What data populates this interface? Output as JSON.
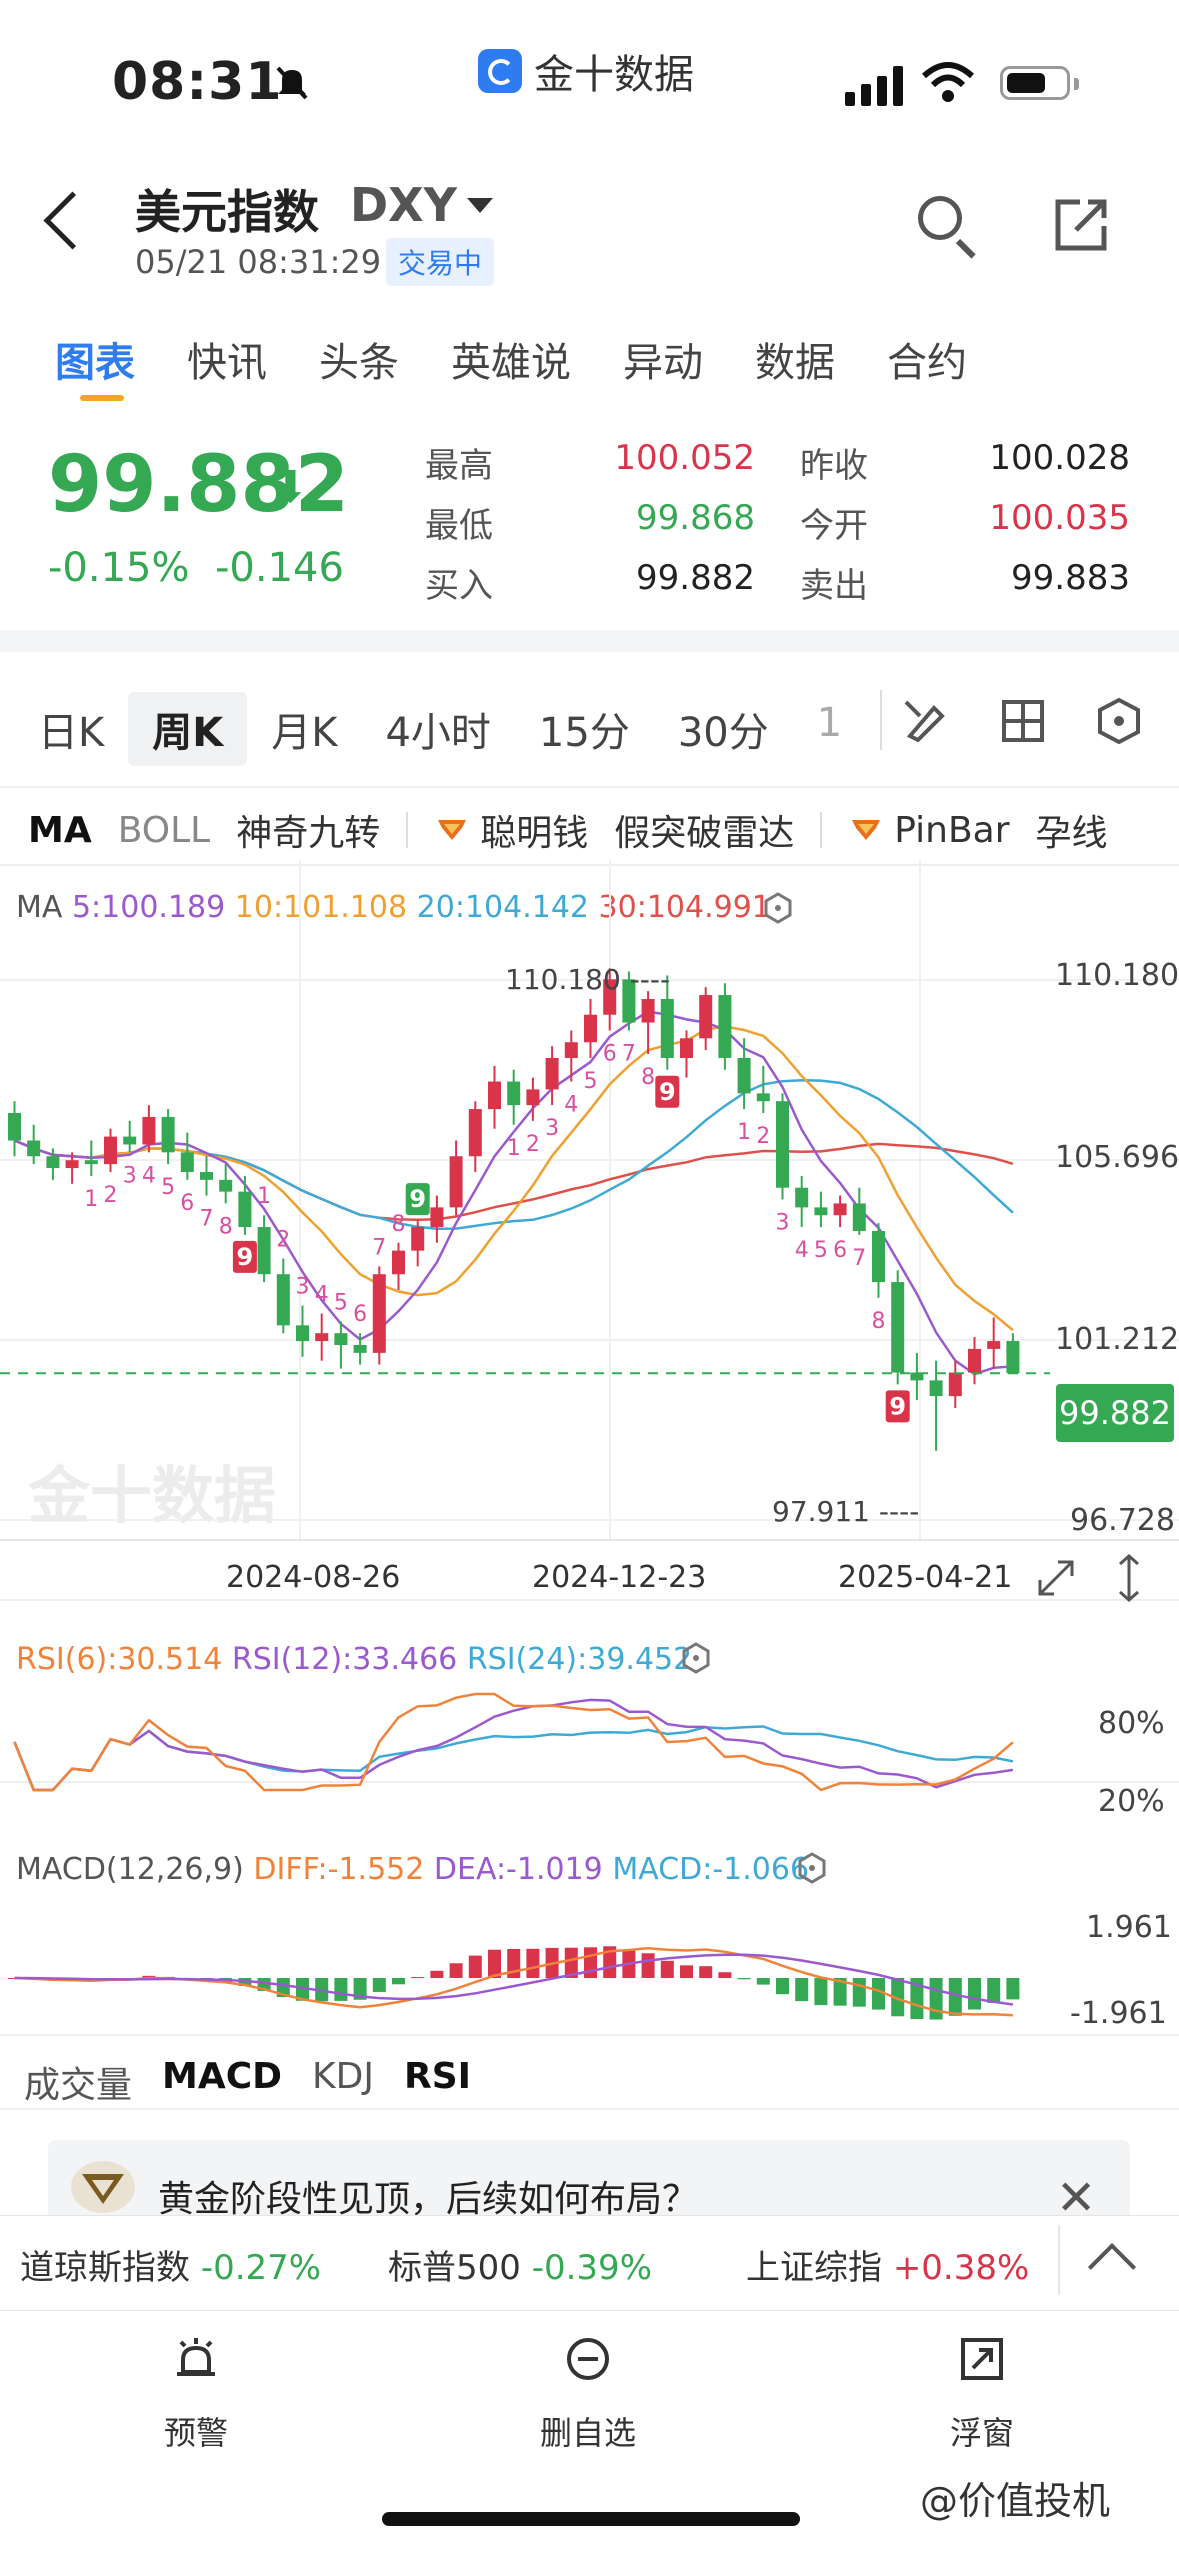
{
  "status_bar": {
    "time": "08:31",
    "app_name": "金十数据"
  },
  "header": {
    "title": "美元指数",
    "code": "DXY",
    "datetime": "05/21 08:31:29",
    "status_badge": "交易中"
  },
  "tabs": [
    "图表",
    "快讯",
    "头条",
    "英雄说",
    "异动",
    "数据",
    "合约"
  ],
  "quote": {
    "price": "99.882",
    "change_pct": "-0.15%",
    "change_abs": "-0.146",
    "rows": [
      {
        "l1": "最高",
        "v1": "100.052",
        "c1": "red",
        "l2": "昨收",
        "v2": "100.028",
        "c2": "dark"
      },
      {
        "l1": "最低",
        "v1": "99.868",
        "c1": "green",
        "l2": "今开",
        "v2": "100.035",
        "c2": "red"
      },
      {
        "l1": "买入",
        "v1": "99.882",
        "c1": "dark",
        "l2": "卖出",
        "v2": "99.883",
        "c2": "dark"
      }
    ]
  },
  "period_tabs": [
    "日K",
    "周K",
    "月K",
    "4小时",
    "15分",
    "30分",
    "1"
  ],
  "indicator_bar": [
    "MA",
    "BOLL",
    "神奇九转",
    "聪明钱",
    "假突破雷达",
    "PinBar",
    "孕线"
  ],
  "ma_legend": {
    "label": "MA",
    "ma5": "5:100.189",
    "ma10": "10:101.108",
    "ma20": "20:104.142",
    "ma30": "30:104.991"
  },
  "colors": {
    "up": "#d9344a",
    "down": "#34a853",
    "ma5": "#9b59d0",
    "ma10": "#f0a030",
    "ma20": "#3fa9d6",
    "ma30": "#e0504a"
  },
  "chart_data": {
    "type": "candlestick",
    "price_axis": [
      "110.180",
      "105.696",
      "101.212",
      "96.728"
    ],
    "current_price_label": "99.882",
    "high_marker": "110.180",
    "low_marker": "97.911",
    "x_ticks": [
      "2024-08-26",
      "2024-12-23",
      "2025-04-21"
    ],
    "candles": [
      [
        106.5,
        106.8,
        105.4,
        105.8
      ],
      [
        105.8,
        106.2,
        105.2,
        105.4
      ],
      [
        105.4,
        105.6,
        104.8,
        105.1
      ],
      [
        105.1,
        105.5,
        104.7,
        105.3
      ],
      [
        105.3,
        105.8,
        104.9,
        105.2
      ],
      [
        105.2,
        106.1,
        105.0,
        105.9
      ],
      [
        105.9,
        106.3,
        105.5,
        105.7
      ],
      [
        105.7,
        106.7,
        105.5,
        106.4
      ],
      [
        106.4,
        106.6,
        105.2,
        105.5
      ],
      [
        105.5,
        106.0,
        104.8,
        105.0
      ],
      [
        105.0,
        105.4,
        104.4,
        104.8
      ],
      [
        104.8,
        105.2,
        104.2,
        104.5
      ],
      [
        104.5,
        104.9,
        103.4,
        103.6
      ],
      [
        103.6,
        103.9,
        102.2,
        102.4
      ],
      [
        102.4,
        102.8,
        100.9,
        101.1
      ],
      [
        101.1,
        101.6,
        100.3,
        100.7
      ],
      [
        100.7,
        101.4,
        100.2,
        100.9
      ],
      [
        100.9,
        101.2,
        100.0,
        100.6
      ],
      [
        100.6,
        100.9,
        100.1,
        100.4
      ],
      [
        100.4,
        102.6,
        100.1,
        102.4
      ],
      [
        102.4,
        103.2,
        102.0,
        103.0
      ],
      [
        103.0,
        103.8,
        102.6,
        103.6
      ],
      [
        103.6,
        104.4,
        103.2,
        104.1
      ],
      [
        104.1,
        105.8,
        103.9,
        105.4
      ],
      [
        105.4,
        106.8,
        105.0,
        106.6
      ],
      [
        106.6,
        107.7,
        106.1,
        107.3
      ],
      [
        107.3,
        107.6,
        106.2,
        106.7
      ],
      [
        106.7,
        107.4,
        106.3,
        107.1
      ],
      [
        107.1,
        108.2,
        106.7,
        107.9
      ],
      [
        107.9,
        108.6,
        107.3,
        108.3
      ],
      [
        108.3,
        109.4,
        107.9,
        109.0
      ],
      [
        109.0,
        110.18,
        108.6,
        109.9
      ],
      [
        109.9,
        110.1,
        108.6,
        108.8
      ],
      [
        108.8,
        109.6,
        108.0,
        109.4
      ],
      [
        109.4,
        110.0,
        107.6,
        107.9
      ],
      [
        107.9,
        108.6,
        107.4,
        108.4
      ],
      [
        108.4,
        109.7,
        108.1,
        109.5
      ],
      [
        109.5,
        109.8,
        107.6,
        107.9
      ],
      [
        107.9,
        108.4,
        106.6,
        107.0
      ],
      [
        107.0,
        107.7,
        106.5,
        106.8
      ],
      [
        106.8,
        107.0,
        104.3,
        104.6
      ],
      [
        104.6,
        104.9,
        103.6,
        104.1
      ],
      [
        104.1,
        104.5,
        103.6,
        103.9
      ],
      [
        103.9,
        104.4,
        103.6,
        104.2
      ],
      [
        104.2,
        104.6,
        103.4,
        103.5
      ],
      [
        103.5,
        103.7,
        101.8,
        102.2
      ],
      [
        102.2,
        102.5,
        99.6,
        99.9
      ],
      [
        99.9,
        100.4,
        99.2,
        99.7
      ],
      [
        99.7,
        100.2,
        97.911,
        99.3
      ],
      [
        99.3,
        100.2,
        99.0,
        99.9
      ],
      [
        99.9,
        100.8,
        99.6,
        100.5
      ],
      [
        100.5,
        101.3,
        100.0,
        100.7
      ],
      [
        100.7,
        100.9,
        99.868,
        99.882
      ]
    ],
    "nine_count_labels": [
      "1",
      "2",
      "3",
      "4",
      "5",
      "6",
      "7",
      "8",
      "9"
    ],
    "rsi": {
      "legend": {
        "rsi6": "RSI(6):30.514",
        "rsi12": "RSI(12):33.466",
        "rsi24": "RSI(24):39.452"
      },
      "levels": [
        "80%",
        "20%"
      ]
    },
    "macd": {
      "legend": {
        "name": "MACD(12,26,9)",
        "diff": "DIFF:-1.552",
        "dea": "DEA:-1.019",
        "macd": "MACD:-1.066"
      },
      "levels": [
        "1.961",
        "-1.961"
      ]
    }
  },
  "sub_tabs": [
    "成交量",
    "MACD",
    "KDJ",
    "RSI"
  ],
  "news": {
    "text": "黄金阶段性见顶，后续如何布局？"
  },
  "ticker": [
    {
      "name": "道琼斯指数",
      "change": "-0.27%",
      "dir": "down"
    },
    {
      "name": "标普500",
      "change": "-0.39%",
      "dir": "down"
    },
    {
      "name": "上证综指",
      "change": "+0.38%",
      "dir": "up"
    }
  ],
  "bottom_nav": [
    "预警",
    "删自选",
    "浮窗"
  ],
  "watermark": "@价值投机"
}
